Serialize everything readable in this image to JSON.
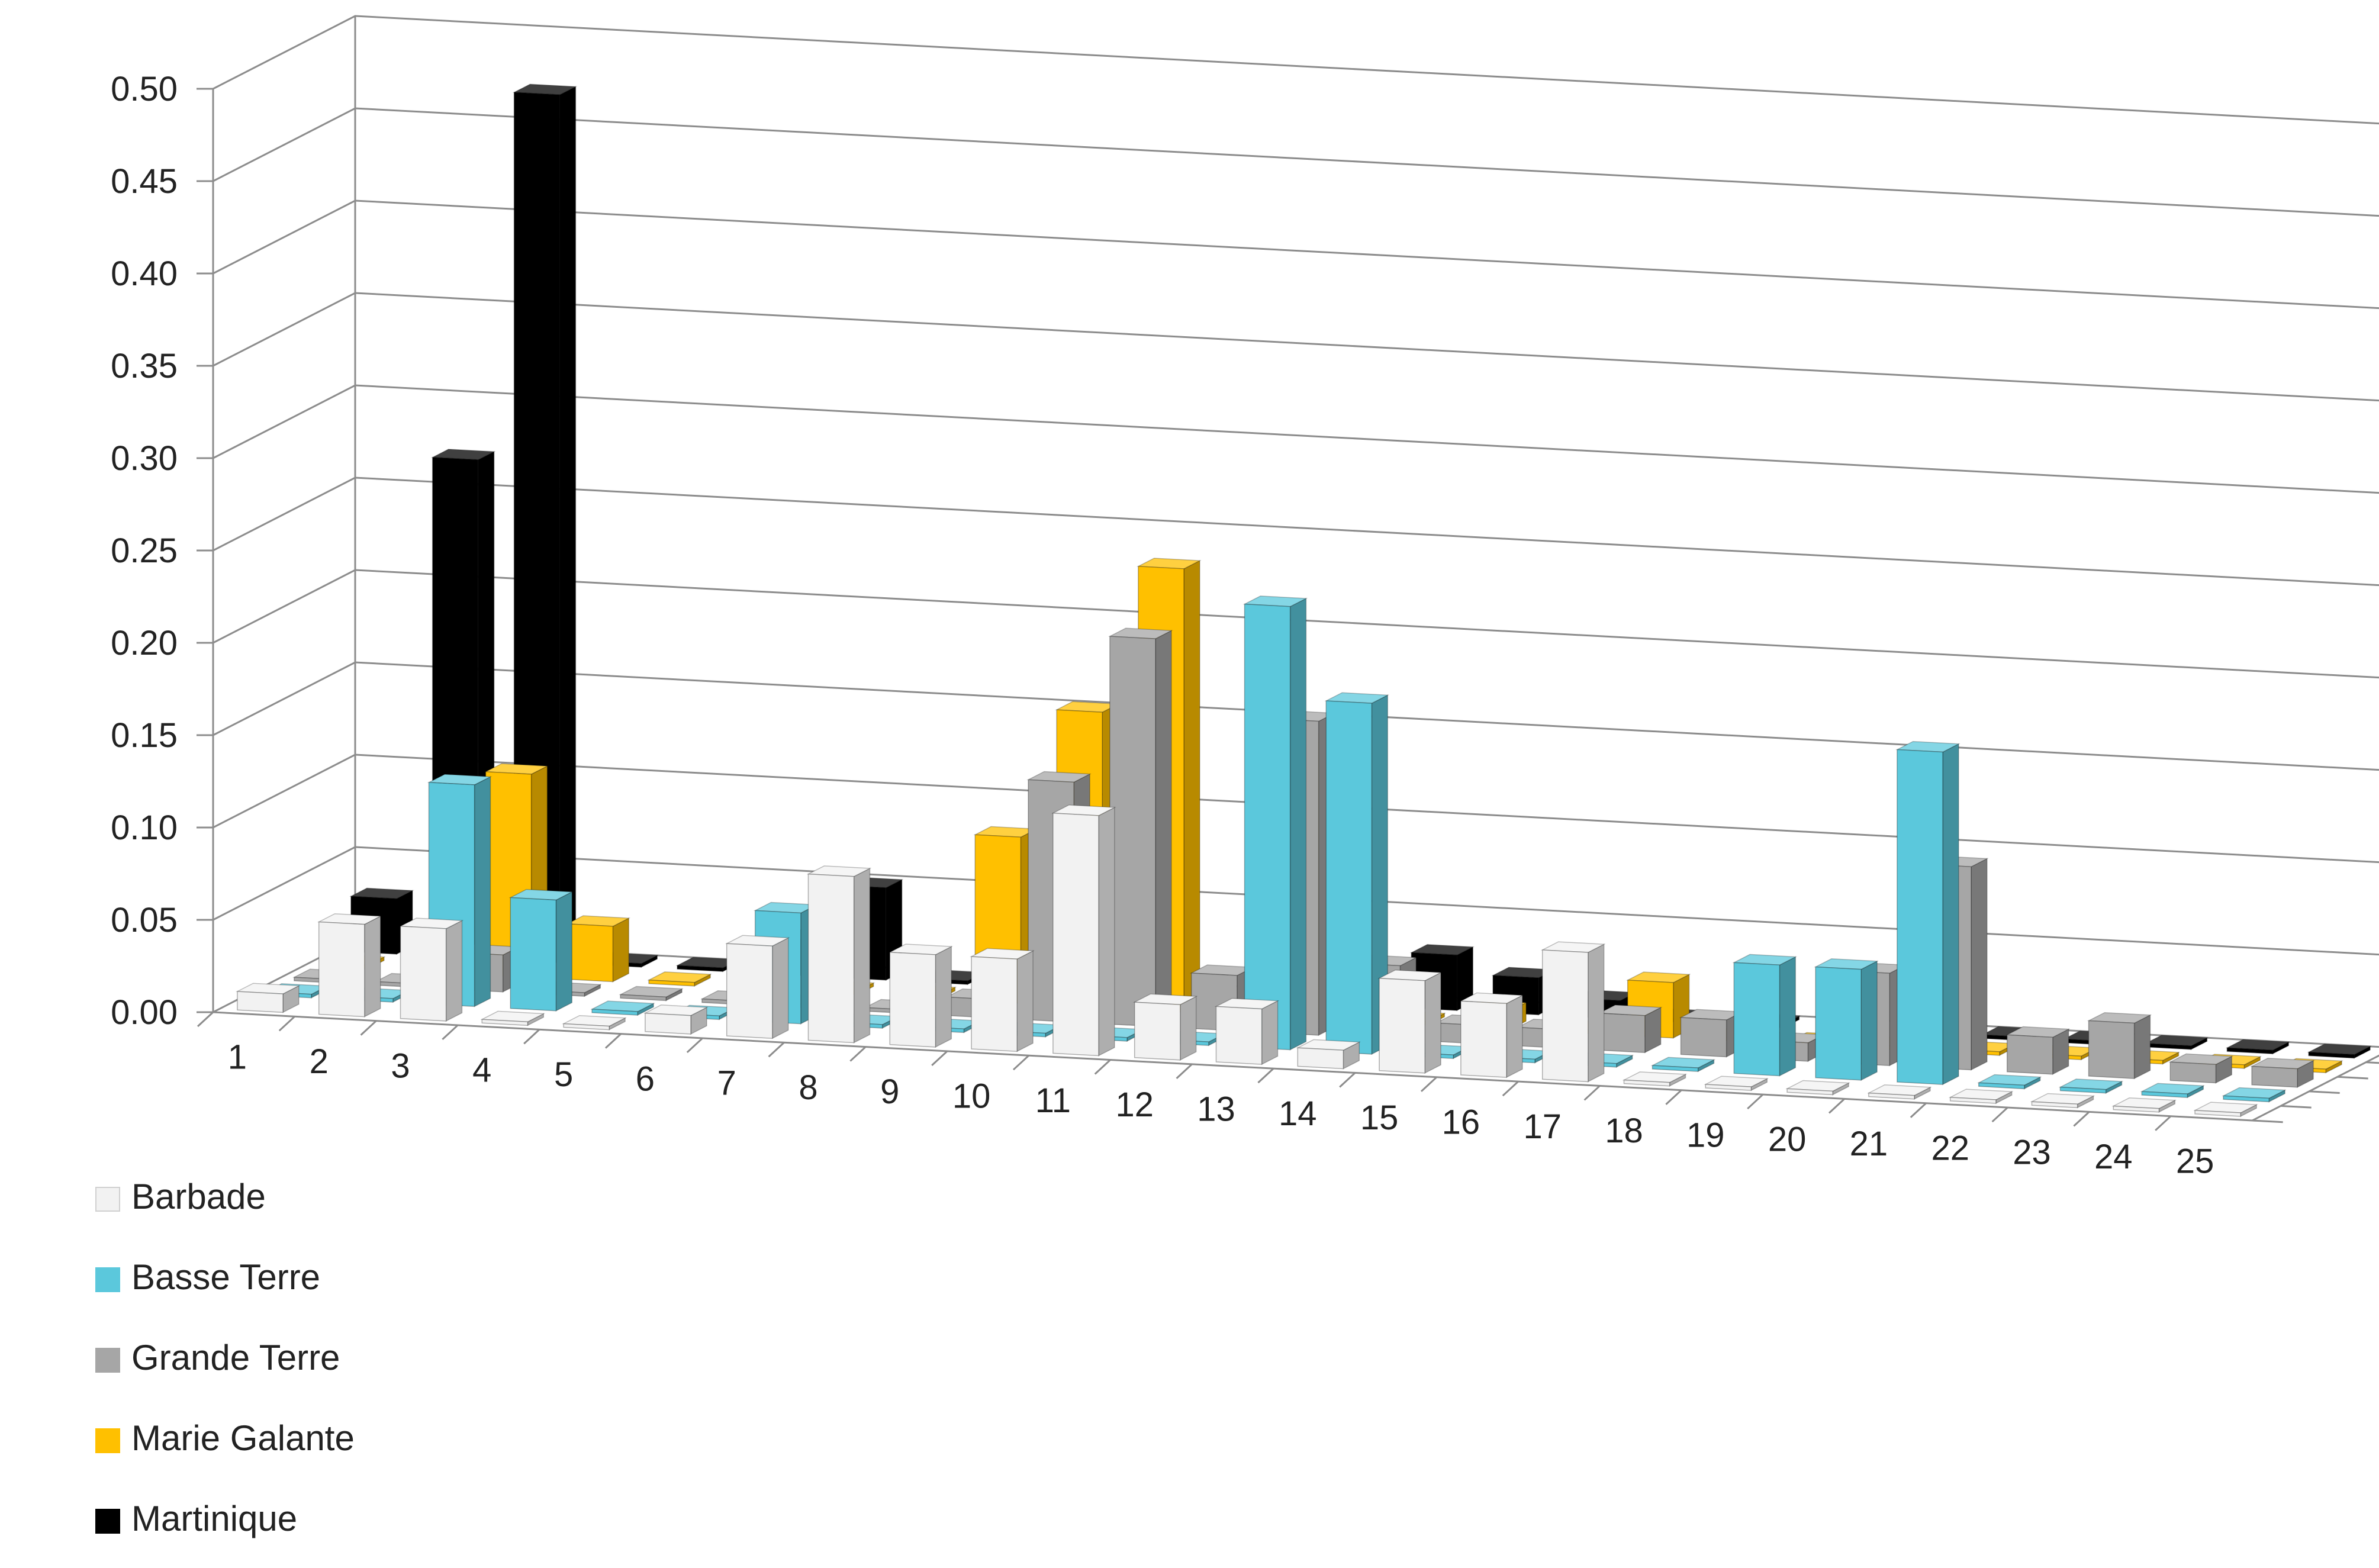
{
  "chart_data": {
    "type": "bar",
    "subtype": "3d-clustered-column",
    "title": "",
    "xlabel": "",
    "ylabel": "",
    "ylim": [
      0,
      0.5
    ],
    "yticks": [
      "0.00",
      "0.05",
      "0.10",
      "0.15",
      "0.20",
      "0.25",
      "0.30",
      "0.35",
      "0.40",
      "0.45",
      "0.50"
    ],
    "categories": [
      "1",
      "2",
      "3",
      "4",
      "5",
      "6",
      "7",
      "8",
      "9",
      "10",
      "11",
      "12",
      "13",
      "14",
      "15",
      "16",
      "17",
      "18",
      "19",
      "20",
      "21",
      "22",
      "23",
      "24",
      "25"
    ],
    "grid": true,
    "legend_position": "bottom-left",
    "series": [
      {
        "name": "Barbade",
        "color": "#f2f2f2",
        "values": [
          0.01,
          0.05,
          0.05,
          0.0,
          0.0,
          0.01,
          0.05,
          0.09,
          0.05,
          0.05,
          0.13,
          0.03,
          0.03,
          0.01,
          0.05,
          0.04,
          0.07,
          0.0,
          0.0,
          0.0,
          0.0,
          0.0,
          0.0,
          0.0,
          0.0
        ]
      },
      {
        "name": "Basse Terre",
        "color": "#5bc8dc",
        "values": [
          0.0,
          0.0,
          0.12,
          0.06,
          0.0,
          0.0,
          0.06,
          0.0,
          0.0,
          0.0,
          0.0,
          0.0,
          0.24,
          0.19,
          0.0,
          0.0,
          0.0,
          0.0,
          0.06,
          0.06,
          0.18,
          0.0,
          0.0,
          0.0,
          0.0
        ]
      },
      {
        "name": "Grande Terre",
        "color": "#a6a6a6",
        "values": [
          0.0,
          0.0,
          0.02,
          0.0,
          0.0,
          0.0,
          0.0,
          0.0,
          0.01,
          0.13,
          0.21,
          0.03,
          0.17,
          0.04,
          0.01,
          0.01,
          0.02,
          0.02,
          0.01,
          0.05,
          0.11,
          0.02,
          0.03,
          0.01,
          0.01
        ]
      },
      {
        "name": "Marie Galante",
        "color": "#ffc000",
        "values": [
          0.0,
          0.0,
          0.11,
          0.03,
          0.0,
          0.0,
          0.0,
          0.0,
          0.09,
          0.16,
          0.24,
          0.0,
          0.15,
          0.0,
          0.01,
          0.0,
          0.03,
          0.0,
          0.0,
          0.0,
          0.0,
          0.0,
          0.0,
          0.0,
          0.0
        ]
      },
      {
        "name": "Martinique",
        "color": "#000000",
        "values": [
          0.03,
          0.27,
          0.47,
          0.0,
          0.0,
          0.02,
          0.05,
          0.0,
          0.0,
          0.0,
          0.01,
          0.0,
          0.01,
          0.03,
          0.02,
          0.01,
          0.0,
          0.0,
          0.0,
          0.0,
          0.0,
          0.0,
          0.0,
          0.0,
          0.0
        ]
      }
    ]
  }
}
